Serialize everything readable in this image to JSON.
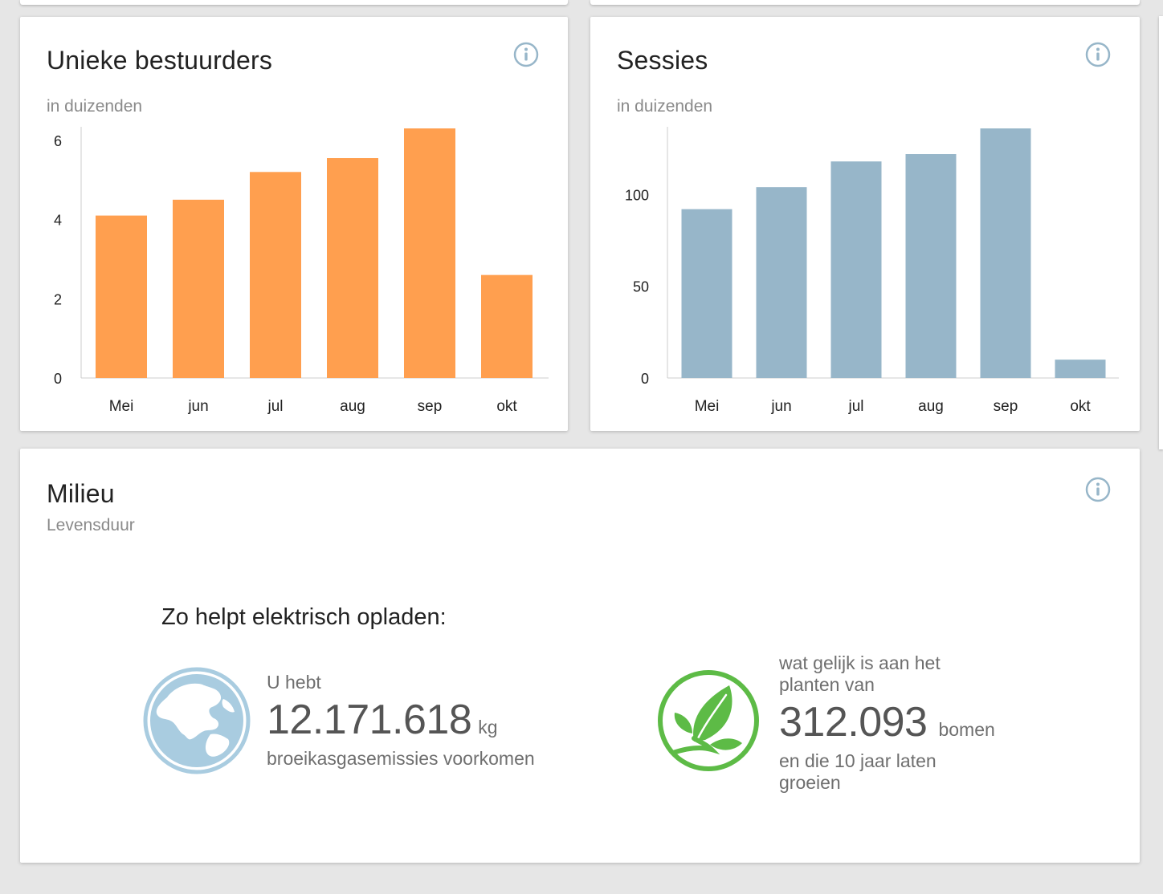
{
  "cards": {
    "drivers": {
      "title": "Unieke bestuurders",
      "subtitle": "in duizenden",
      "info_icon": "info-circle-icon"
    },
    "sessions": {
      "title": "Sessies",
      "subtitle": "in duizenden",
      "info_icon": "info-circle-icon"
    },
    "environment": {
      "title": "Milieu",
      "subtitle": "Levensduur",
      "info_icon": "info-circle-icon",
      "heading": "Zo helpt elektrisch opladen:",
      "emissions": {
        "icon": "globe-icon",
        "prefix": "U hebt",
        "value": "12.171.618",
        "unit": "kg",
        "suffix": "broeikasgasemissies voorkomen"
      },
      "trees": {
        "icon": "leaf-icon",
        "prefix_line1": "wat gelijk is aan het",
        "prefix_line2": "planten van",
        "value": "312.093",
        "unit": "bomen",
        "suffix_line1": "en die 10 jaar laten",
        "suffix_line2": "groeien"
      }
    }
  },
  "colors": {
    "drivers_bar": "#ff9f4f",
    "sessions_bar": "#97b6c9",
    "info_icon": "#97b6c9",
    "globe": "#a9cce0",
    "leaf": "#5dbb46"
  },
  "chart_data": [
    {
      "type": "bar",
      "title": "Unieke bestuurders",
      "subtitle": "in duizenden",
      "categories": [
        "Mei",
        "jun",
        "jul",
        "aug",
        "sep",
        "okt"
      ],
      "values": [
        4.1,
        4.5,
        5.2,
        5.55,
        6.3,
        2.6
      ],
      "yticks": [
        0,
        2,
        4,
        6
      ],
      "ylim": [
        0,
        6.3
      ],
      "grid": false,
      "color": "#ff9f4f"
    },
    {
      "type": "bar",
      "title": "Sessies",
      "subtitle": "in duizenden",
      "categories": [
        "Mei",
        "jun",
        "jul",
        "aug",
        "sep",
        "okt"
      ],
      "values": [
        92,
        104,
        118,
        122,
        136,
        10
      ],
      "yticks": [
        0,
        50,
        100
      ],
      "ylim": [
        0,
        136
      ],
      "grid": false,
      "color": "#97b6c9"
    }
  ]
}
